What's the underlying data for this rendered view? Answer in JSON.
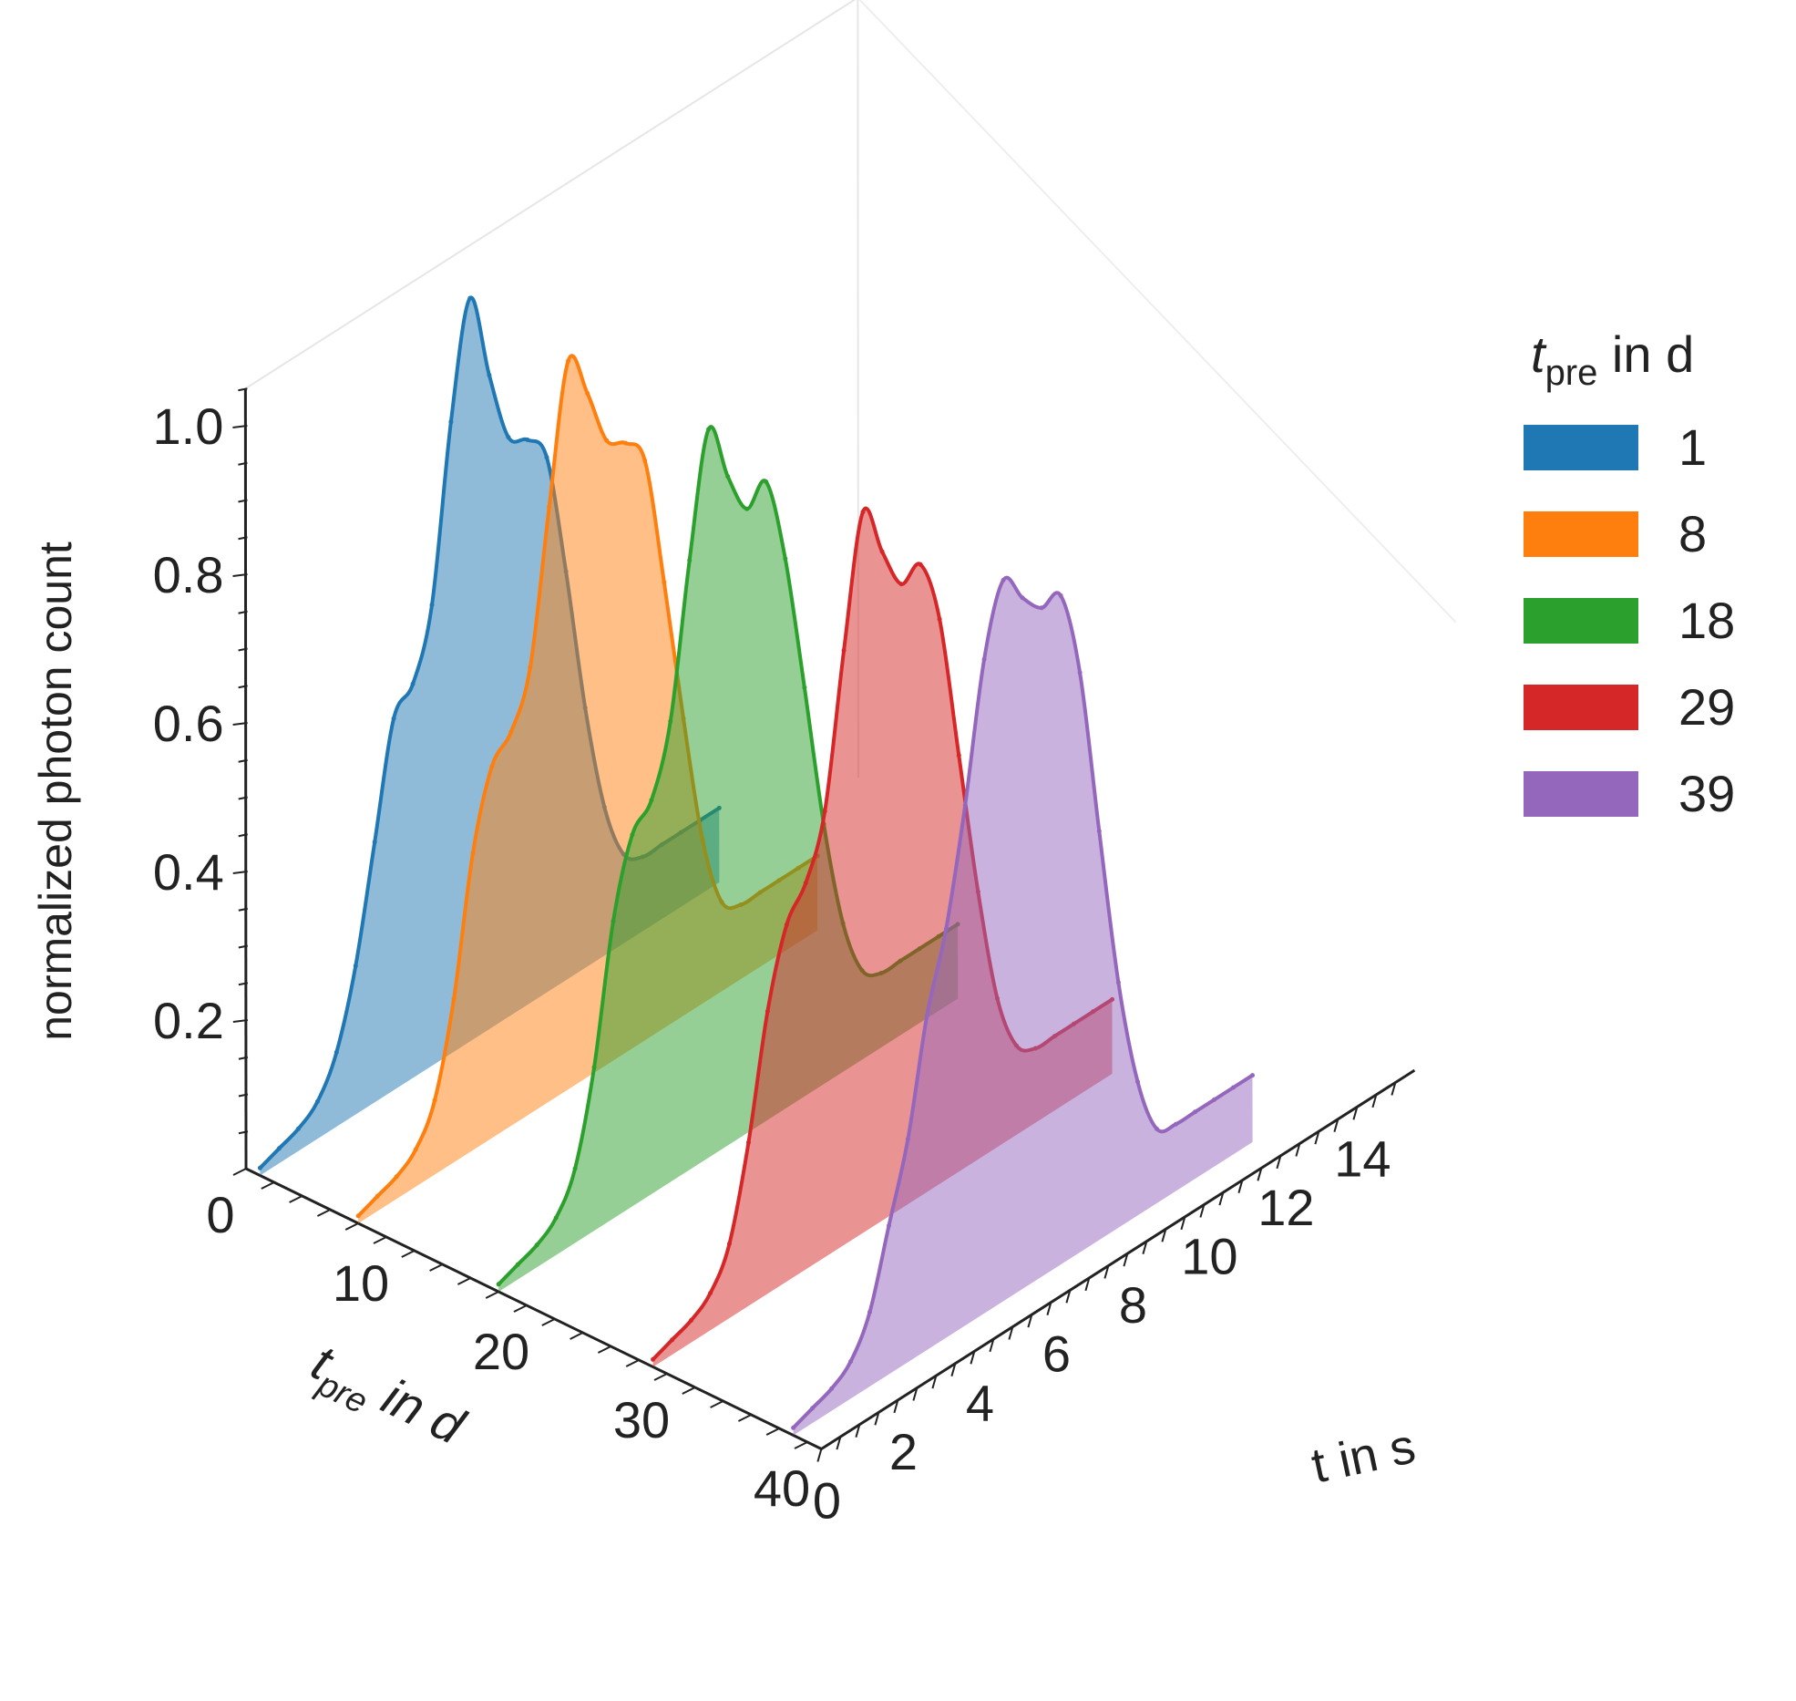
{
  "chart_data": {
    "type": "line",
    "subtype": "3d-waterfall",
    "title": "",
    "xlabel": "t in s",
    "ylabel_main": "t",
    "ylabel_sub": "pre",
    "ylabel_rest": " in d",
    "zlabel": "normalized photon count",
    "xlim": [
      0,
      15
    ],
    "ylim": [
      0,
      40
    ],
    "zlim": [
      0,
      1.05
    ],
    "x_ticks": [
      "0",
      "2",
      "4",
      "6",
      "8",
      "10",
      "12",
      "14"
    ],
    "y_ticks": [
      "0",
      "10",
      "20",
      "30",
      "40"
    ],
    "z_ticks": [
      "0.2",
      "0.4",
      "0.6",
      "0.8",
      "1.0"
    ],
    "x": [
      0,
      0.5,
      1,
      1.5,
      2,
      2.5,
      3,
      3.5,
      4,
      4.5,
      5,
      5.5,
      6,
      6.5,
      7,
      7.5,
      8,
      8.5,
      9,
      9.5,
      10,
      10.5,
      11,
      11.5,
      12,
      12.5,
      13,
      13.5,
      14
    ],
    "legend": {
      "title_main": "t",
      "title_sub": "pre",
      "title_rest": " in d",
      "position": "right"
    },
    "series": [
      {
        "name": "1",
        "tpre": 1,
        "color": "#1f77b4",
        "values": [
          0.01,
          0.02,
          0.03,
          0.05,
          0.1,
          0.2,
          0.35,
          0.5,
          0.53,
          0.62,
          0.85,
          1.0,
          0.88,
          0.78,
          0.76,
          0.72,
          0.55,
          0.35,
          0.2,
          0.12,
          0.1,
          0.1,
          0.1,
          0.1,
          0.1,
          null,
          null,
          null,
          null
        ]
      },
      {
        "name": "8",
        "tpre": 8,
        "color": "#ff7f0e",
        "values": [
          0.01,
          0.02,
          0.03,
          0.05,
          0.1,
          0.22,
          0.4,
          0.5,
          0.53,
          0.6,
          0.8,
          0.98,
          0.92,
          0.84,
          0.82,
          0.78,
          0.6,
          0.4,
          0.22,
          0.12,
          0.1,
          0.1,
          0.1,
          0.1,
          0.1,
          null,
          null,
          null,
          null
        ]
      },
      {
        "name": "18",
        "tpre": 18,
        "color": "#2ca02c",
        "values": [
          0.01,
          0.02,
          0.03,
          0.05,
          0.1,
          0.22,
          0.4,
          0.5,
          0.53,
          0.62,
          0.82,
          0.98,
          0.9,
          0.84,
          0.86,
          0.74,
          0.55,
          0.35,
          0.2,
          0.12,
          0.1,
          0.1,
          0.1,
          0.1,
          0.1,
          null,
          null,
          null,
          null
        ]
      },
      {
        "name": "29",
        "tpre": 29,
        "color": "#d62728",
        "values": [
          0.01,
          0.02,
          0.03,
          0.05,
          0.1,
          0.22,
          0.38,
          0.48,
          0.52,
          0.6,
          0.8,
          0.97,
          0.9,
          0.84,
          0.85,
          0.76,
          0.56,
          0.36,
          0.2,
          0.12,
          0.1,
          0.1,
          0.1,
          0.1,
          0.1,
          null,
          null,
          null,
          null
        ]
      },
      {
        "name": "39",
        "tpre": 39,
        "color": "#9467bd",
        "values": [
          0.01,
          0.02,
          0.03,
          0.05,
          0.1,
          0.2,
          0.3,
          0.45,
          0.55,
          0.7,
          0.88,
          0.97,
          0.93,
          0.9,
          0.9,
          0.78,
          0.55,
          0.33,
          0.18,
          0.1,
          0.09,
          0.09,
          0.09,
          0.09,
          0.09,
          null,
          null,
          null,
          null
        ]
      }
    ]
  }
}
